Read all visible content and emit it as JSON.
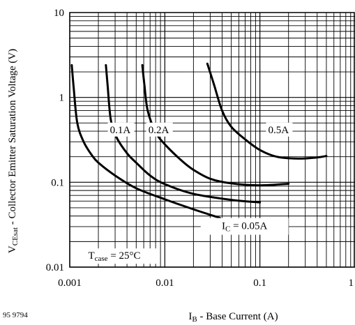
{
  "figure_id": "95 9794",
  "chart_data": {
    "type": "line",
    "log_x": true,
    "log_y": true,
    "xlim": [
      0.001,
      1
    ],
    "ylim": [
      0.01,
      10
    ],
    "grid": true,
    "xlabel": {
      "main": "I",
      "sub": "B",
      "rest": " - Base Current (A)"
    },
    "ylabel": {
      "main": "V",
      "sub": "CEsat",
      "rest": " - Collector Emitter Saturation Voltage (V)"
    },
    "x_ticks": [
      {
        "value": 0.001,
        "label": "0.001"
      },
      {
        "value": 0.01,
        "label": "0.01"
      },
      {
        "value": 0.1,
        "label": "0.1"
      },
      {
        "value": 1,
        "label": "1"
      }
    ],
    "y_ticks": [
      {
        "value": 0.01,
        "label": "0.01"
      },
      {
        "value": 0.1,
        "label": "0.1"
      },
      {
        "value": 1,
        "label": "1"
      },
      {
        "value": 10,
        "label": "10"
      }
    ],
    "annotations": {
      "condition": {
        "main": "T",
        "sub": "case",
        "rest": " = 25°C"
      },
      "ic_label": {
        "main": "I",
        "sub": "C",
        "rest": " = 0.05A"
      }
    },
    "series": [
      {
        "name": "0.05A",
        "label_at": [
          0.00103,
          0.028
        ],
        "points": [
          [
            0.00105,
            2.4
          ],
          [
            0.0011,
            1.3
          ],
          [
            0.0012,
            0.5
          ],
          [
            0.0014,
            0.3
          ],
          [
            0.0017,
            0.21
          ],
          [
            0.002,
            0.17
          ],
          [
            0.003,
            0.12
          ],
          [
            0.005,
            0.085
          ],
          [
            0.01,
            0.063
          ],
          [
            0.02,
            0.048
          ],
          [
            0.038,
            0.038
          ]
        ]
      },
      {
        "name": "0.1A",
        "label_at": [
          0.0026,
          0.38
        ],
        "points": [
          [
            0.0024,
            2.4
          ],
          [
            0.0025,
            1.4
          ],
          [
            0.0027,
            0.55
          ],
          [
            0.0031,
            0.34
          ],
          [
            0.004,
            0.22
          ],
          [
            0.005,
            0.17
          ],
          [
            0.007,
            0.12
          ],
          [
            0.01,
            0.095
          ],
          [
            0.02,
            0.073
          ],
          [
            0.05,
            0.062
          ],
          [
            0.1,
            0.058
          ]
        ]
      },
      {
        "name": "0.2A",
        "label_at": [
          0.0066,
          0.38
        ],
        "points": [
          [
            0.0058,
            2.4
          ],
          [
            0.0061,
            1.4
          ],
          [
            0.0066,
            0.7
          ],
          [
            0.008,
            0.39
          ],
          [
            0.01,
            0.28
          ],
          [
            0.015,
            0.18
          ],
          [
            0.02,
            0.14
          ],
          [
            0.03,
            0.11
          ],
          [
            0.05,
            0.097
          ],
          [
            0.1,
            0.092
          ],
          [
            0.2,
            0.096
          ]
        ]
      },
      {
        "name": "0.5A",
        "label_at": [
          0.12,
          0.38
        ],
        "points": [
          [
            0.028,
            2.5
          ],
          [
            0.033,
            1.4
          ],
          [
            0.04,
            0.7
          ],
          [
            0.05,
            0.45
          ],
          [
            0.07,
            0.32
          ],
          [
            0.1,
            0.24
          ],
          [
            0.15,
            0.2
          ],
          [
            0.25,
            0.19
          ],
          [
            0.4,
            0.196
          ],
          [
            0.5,
            0.204
          ]
        ]
      }
    ]
  }
}
